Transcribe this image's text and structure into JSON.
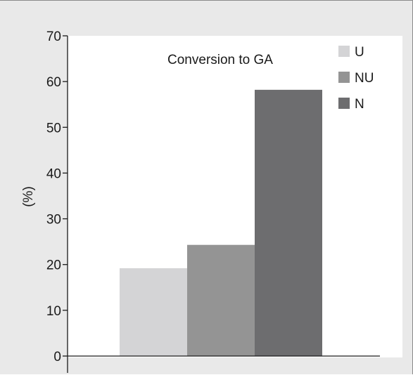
{
  "chart_data": {
    "type": "bar",
    "title": "Conversion to GA",
    "xlabel": "",
    "ylabel": "(%)",
    "ylim": [
      0,
      70
    ],
    "yticks": [
      0,
      10,
      20,
      30,
      40,
      50,
      60,
      70
    ],
    "grid": false,
    "legend_position": "top-right",
    "categories": [
      ""
    ],
    "series": [
      {
        "name": "U",
        "values": [
          19.2
        ],
        "color": "#d4d4d6"
      },
      {
        "name": "NU",
        "values": [
          24.3
        ],
        "color": "#949494"
      },
      {
        "name": "N",
        "values": [
          58.2
        ],
        "color": "#6d6d6f"
      }
    ]
  }
}
